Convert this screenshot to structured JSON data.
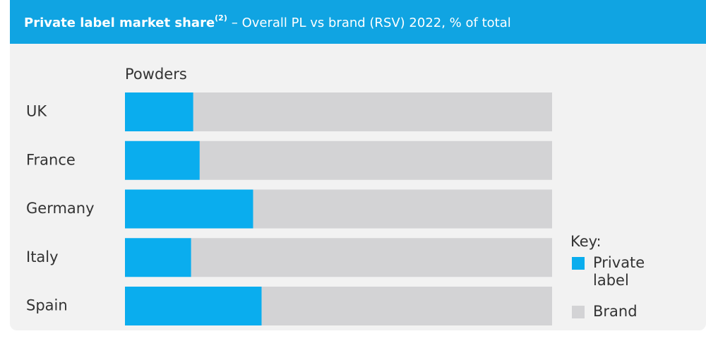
{
  "chart_data": {
    "type": "stacked_barh",
    "title": {
      "bold": "Private label market share",
      "sup": "(2)",
      "rest": "– Overall PL vs brand (RSV) 2022, % of total"
    },
    "subtitle": "Powders",
    "categories": [
      "UK",
      "France",
      "Germany",
      "Italy",
      "Spain"
    ],
    "series": [
      {
        "name": "Private label",
        "color": "#0aadee",
        "values": [
          16,
          17.5,
          30,
          15.5,
          32
        ]
      },
      {
        "name": "Brand",
        "color": "#d3d3d5",
        "values": [
          84,
          82.5,
          70,
          84.5,
          68
        ]
      }
    ],
    "xlim": [
      0,
      100
    ],
    "legend_title": "Key:",
    "legend": "right"
  }
}
